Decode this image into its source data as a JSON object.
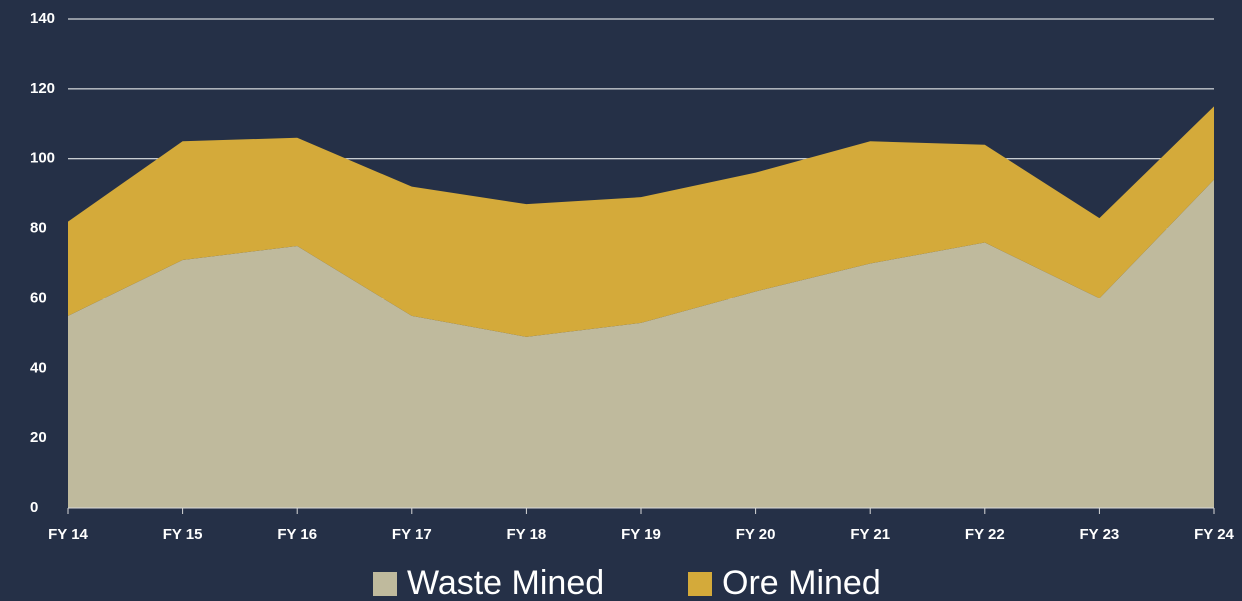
{
  "chart_data": {
    "type": "stacked_area",
    "categories": [
      "FY 14",
      "FY 15",
      "FY 16",
      "FY 17",
      "FY 18",
      "FY 19",
      "FY 20",
      "FY 21",
      "FY 22",
      "FY 23",
      "FY 24"
    ],
    "series": [
      {
        "name": "Waste Mined",
        "color": "#bfba9d",
        "values": [
          55,
          71,
          75,
          55,
          49,
          53,
          62,
          70,
          76,
          60,
          94
        ]
      },
      {
        "name": "Ore Mined",
        "color": "#d4aa3a",
        "values": [
          27,
          34,
          31,
          37,
          38,
          36,
          34,
          35,
          28,
          23,
          21
        ]
      }
    ],
    "ylim": [
      0,
      140
    ],
    "yticks": [
      0,
      20,
      40,
      60,
      80,
      100,
      120,
      140
    ],
    "grid": true,
    "legend": "bottom"
  }
}
